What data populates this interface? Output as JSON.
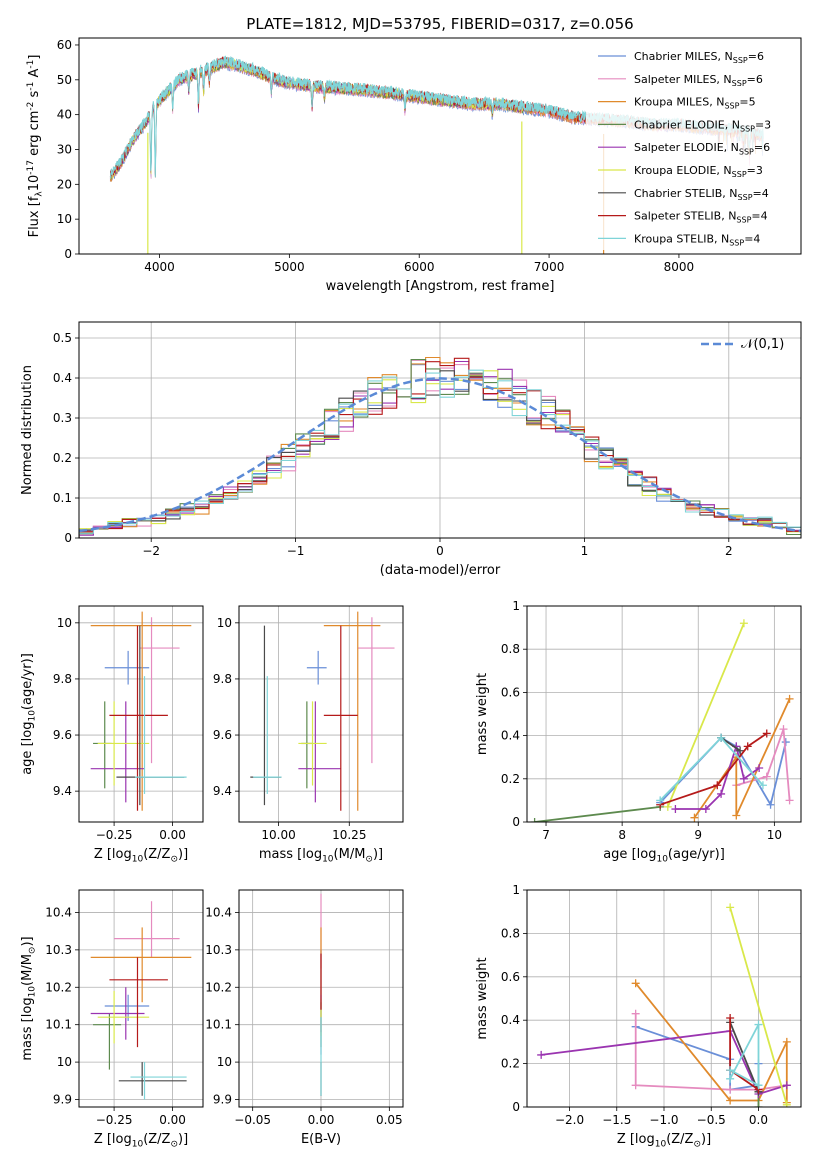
{
  "figure_title": "PLATE=1812, MJD=53795, FIBERID=0317, z=0.056",
  "series_names": [
    "Chabrier MILES, N$_{SSP}$=6",
    "Salpeter MILES, N$_{SSP}$=6",
    "Kroupa MILES, N$_{SSP}$=5",
    "Chabrier ELODIE, N$_{SSP}$=3",
    "Salpeter ELODIE, N$_{SSP}$=6",
    "Kroupa ELODIE, N$_{SSP}$=3",
    "Chabrier STELIB, N$_{SSP}$=4",
    "Salpeter STELIB, N$_{SSP}$=4",
    "Kroupa STELIB, N$_{SSP}$=4"
  ],
  "series_colors": [
    "#6a8fd8",
    "#e58bbf",
    "#e08a2c",
    "#5d8a4e",
    "#9a34b0",
    "#d9e84a",
    "#4a4a4a",
    "#b51a1a",
    "#7fd4d8"
  ],
  "chart_data": [
    {
      "id": "spectrum",
      "type": "line",
      "title": "PLATE=1812, MJD=53795, FIBERID=0317, z=0.056",
      "xlabel": "wavelength [Angstrom, rest frame]",
      "ylabel": "Flux [f$_\\lambda$10$^{-17}$ erg cm$^{-2}$ s$^{-1}$ A$^{-1}$]",
      "xlim": [
        3380,
        8940
      ],
      "ylim": [
        0,
        62
      ],
      "xticks": [
        4000,
        5000,
        6000,
        7000,
        8000
      ],
      "yticks": [
        0,
        10,
        20,
        30,
        40,
        50,
        60
      ],
      "grid": false,
      "legend": "upper right",
      "continuum": [
        [
          3620,
          22
        ],
        [
          3700,
          26
        ],
        [
          3800,
          33
        ],
        [
          3900,
          38
        ],
        [
          3950,
          42
        ],
        [
          4050,
          46
        ],
        [
          4150,
          50
        ],
        [
          4300,
          52
        ],
        [
          4500,
          55
        ],
        [
          4700,
          53
        ],
        [
          4900,
          50
        ],
        [
          5000,
          49
        ],
        [
          5200,
          48
        ],
        [
          5400,
          47.5
        ],
        [
          5600,
          47
        ],
        [
          5800,
          46
        ],
        [
          6000,
          45
        ],
        [
          6200,
          44
        ],
        [
          6400,
          43
        ],
        [
          6600,
          43
        ],
        [
          6800,
          42
        ],
        [
          7000,
          41
        ],
        [
          7200,
          39
        ],
        [
          7400,
          38.5
        ],
        [
          7600,
          38
        ],
        [
          7800,
          37
        ],
        [
          8000,
          37
        ],
        [
          8200,
          36
        ],
        [
          8400,
          35.5
        ],
        [
          8650,
          34
        ]
      ],
      "absorption_lines": [
        [
          3934,
          18
        ],
        [
          3968,
          20
        ],
        [
          4102,
          6
        ],
        [
          4226,
          4
        ],
        [
          4300,
          10
        ],
        [
          4340,
          6
        ],
        [
          4384,
          4
        ],
        [
          4861,
          4
        ],
        [
          5175,
          6
        ],
        [
          5270,
          3
        ],
        [
          5890,
          4
        ],
        [
          6563,
          3
        ],
        [
          8498,
          3
        ],
        [
          8542,
          5
        ],
        [
          8662,
          5
        ]
      ],
      "spikes": [
        [
          3910,
          0
        ],
        [
          6790,
          0
        ],
        [
          7420,
          0
        ]
      ],
      "per_series_range": [
        [
          3620,
          8650
        ],
        [
          3620,
          8650
        ],
        [
          3620,
          8650
        ],
        [
          3620,
          6800
        ],
        [
          3620,
          6800
        ],
        [
          3620,
          6800
        ],
        [
          3620,
          8650
        ],
        [
          3620,
          8650
        ],
        [
          3620,
          8650
        ]
      ]
    },
    {
      "id": "residuals",
      "type": "step",
      "xlabel": "(data-model)/error",
      "ylabel": "Normed distribution",
      "xlim": [
        -2.5,
        2.5
      ],
      "ylim": [
        0,
        0.54
      ],
      "xticks": [
        -2,
        -1,
        0,
        1,
        2
      ],
      "yticks": [
        0,
        0.1,
        0.2,
        0.3,
        0.4,
        0.5
      ],
      "grid": true,
      "legend": "upper right",
      "reference_name": "$\\mathcal{N}(0,1)$",
      "bin_edges_start": -2.5,
      "bin_width": 0.1,
      "base_values": [
        0.015,
        0.02,
        0.03,
        0.04,
        0.045,
        0.05,
        0.06,
        0.07,
        0.08,
        0.09,
        0.11,
        0.13,
        0.15,
        0.18,
        0.2,
        0.23,
        0.26,
        0.28,
        0.31,
        0.33,
        0.35,
        0.37,
        0.38,
        0.39,
        0.4,
        0.4,
        0.39,
        0.39,
        0.38,
        0.37,
        0.35,
        0.33,
        0.31,
        0.28,
        0.26,
        0.23,
        0.2,
        0.18,
        0.15,
        0.13,
        0.11,
        0.09,
        0.08,
        0.07,
        0.06,
        0.05,
        0.045,
        0.04,
        0.03,
        0.02
      ]
    },
    {
      "id": "age-vs-Z",
      "type": "errorbar",
      "xlabel": "Z [log$_{10}$(Z/Z$_\\odot$)]",
      "ylabel": "age  [log$_{10}$(age/yr)]",
      "xlim": [
        -0.4,
        0.13
      ],
      "ylim": [
        9.29,
        10.06
      ],
      "xticks": [
        -0.25,
        0.0
      ],
      "xtick_labels": [
        "−0.25",
        "0.00"
      ],
      "yticks": [
        9.4,
        9.6,
        9.8,
        10.0
      ],
      "grid": true,
      "points": [
        {
          "x": -0.19,
          "y": 9.84,
          "xerr": [
            0.1,
            0.09
          ],
          "yerr": [
            0.06,
            0.06
          ]
        },
        {
          "x": -0.09,
          "y": 9.91,
          "xerr": [
            0.05,
            0.12
          ],
          "yerr": [
            0.41,
            0.11
          ]
        },
        {
          "x": -0.13,
          "y": 9.99,
          "xerr": [
            0.22,
            0.21
          ],
          "yerr": [
            0.66,
            0.05
          ]
        },
        {
          "x": -0.29,
          "y": 9.57,
          "xerr": [
            0.05,
            0.03
          ],
          "yerr": [
            0.16,
            0.15
          ]
        },
        {
          "x": -0.2,
          "y": 9.48,
          "xerr": [
            0.15,
            0.08
          ],
          "yerr": [
            0.12,
            0.24
          ]
        },
        {
          "x": -0.25,
          "y": 9.57,
          "xerr": [
            0.07,
            0.15
          ],
          "yerr": [
            0.15,
            0.15
          ]
        },
        {
          "x": -0.14,
          "y": 9.45,
          "xerr": [
            0.1,
            0.19
          ],
          "yerr": [
            0.1,
            0.54
          ]
        },
        {
          "x": -0.15,
          "y": 9.67,
          "xerr": [
            0.12,
            0.13
          ],
          "yerr": [
            0.34,
            0.32
          ]
        },
        {
          "x": -0.12,
          "y": 9.45,
          "xerr": [
            0.04,
            0.18
          ],
          "yerr": [
            0.06,
            0.36
          ]
        }
      ]
    },
    {
      "id": "age-vs-mass",
      "type": "errorbar",
      "xlabel": "mass [log$_{10}$(M/M$_\\odot$)]",
      "ylabel": "",
      "xlim": [
        9.86,
        10.44
      ],
      "ylim": [
        9.29,
        10.06
      ],
      "xticks": [
        10.0,
        10.25
      ],
      "xtick_labels": [
        "10.00",
        "10.25"
      ],
      "yticks": [
        9.4,
        9.6,
        9.8,
        10.0
      ],
      "grid": true,
      "points": [
        {
          "x": 10.14,
          "y": 9.84,
          "xerr": [
            0.04,
            0.03
          ],
          "yerr": [
            0.06,
            0.06
          ]
        },
        {
          "x": 10.33,
          "y": 9.91,
          "xerr": [
            0.05,
            0.08
          ],
          "yerr": [
            0.41,
            0.11
          ]
        },
        {
          "x": 10.28,
          "y": 9.99,
          "xerr": [
            0.12,
            0.08
          ],
          "yerr": [
            0.66,
            0.05
          ]
        },
        {
          "x": 10.1,
          "y": 9.57,
          "xerr": [
            0.02,
            0.02
          ],
          "yerr": [
            0.16,
            0.15
          ]
        },
        {
          "x": 10.13,
          "y": 9.48,
          "xerr": [
            0.06,
            0.09
          ],
          "yerr": [
            0.12,
            0.24
          ]
        },
        {
          "x": 10.12,
          "y": 9.57,
          "xerr": [
            0.05,
            0.05
          ],
          "yerr": [
            0.15,
            0.15
          ]
        },
        {
          "x": 9.95,
          "y": 9.45,
          "xerr": [
            0.05,
            0.06
          ],
          "yerr": [
            0.1,
            0.54
          ]
        },
        {
          "x": 10.22,
          "y": 9.67,
          "xerr": [
            0.06,
            0.06
          ],
          "yerr": [
            0.34,
            0.32
          ]
        },
        {
          "x": 9.96,
          "y": 9.45,
          "xerr": [
            0.05,
            0.05
          ],
          "yerr": [
            0.06,
            0.36
          ]
        }
      ]
    },
    {
      "id": "weight-vs-age",
      "type": "line",
      "xlabel": "age  [log$_{10}$(age/yr)]",
      "ylabel": "mass weight",
      "xlim": [
        6.75,
        10.35
      ],
      "ylim": [
        0,
        1.0
      ],
      "xticks": [
        7,
        8,
        9,
        10
      ],
      "yticks": [
        0,
        0.2,
        0.4,
        0.6,
        0.8,
        1.0
      ],
      "grid": true,
      "series": [
        [
          [
            8.5,
            0.09
          ],
          [
            9.3,
            0.39
          ],
          [
            9.5,
            0.35
          ],
          [
            9.95,
            0.08
          ],
          [
            10.15,
            0.37
          ]
        ],
        [
          [
            9.5,
            0.17
          ],
          [
            9.9,
            0.21
          ],
          [
            10.12,
            0.43
          ],
          [
            10.2,
            0.1
          ]
        ],
        [
          [
            8.95,
            0.02
          ],
          [
            9.5,
            0.3
          ],
          [
            9.5,
            0.03
          ],
          [
            10.2,
            0.57
          ]
        ],
        [
          [
            6.85,
            0.0
          ],
          [
            8.5,
            0.07
          ]
        ],
        [
          [
            8.7,
            0.06
          ],
          [
            9.1,
            0.06
          ],
          [
            9.3,
            0.13
          ],
          [
            9.5,
            0.35
          ],
          [
            9.6,
            0.2
          ],
          [
            9.8,
            0.25
          ]
        ],
        [
          [
            8.6,
            0.07
          ],
          [
            9.6,
            0.92
          ]
        ],
        [
          [
            9.3,
            0.39
          ],
          [
            9.55,
            0.33
          ]
        ],
        [
          [
            8.5,
            0.08
          ],
          [
            9.25,
            0.17
          ],
          [
            9.65,
            0.35
          ],
          [
            9.9,
            0.41
          ]
        ],
        [
          [
            8.5,
            0.1
          ],
          [
            9.3,
            0.39
          ],
          [
            9.85,
            0.17
          ]
        ]
      ]
    },
    {
      "id": "mass-vs-Z",
      "type": "errorbar",
      "xlabel": "Z [log$_{10}$(Z/Z$_\\odot$)]",
      "ylabel": "mass [log$_{10}$(M/M$_\\odot$)]",
      "xlim": [
        -0.4,
        0.13
      ],
      "ylim": [
        9.88,
        10.46
      ],
      "xticks": [
        -0.25,
        0.0
      ],
      "xtick_labels": [
        "−0.25",
        "0.00"
      ],
      "yticks": [
        9.9,
        10.0,
        10.1,
        10.2,
        10.3,
        10.4
      ],
      "grid": true,
      "points": [
        {
          "x": -0.19,
          "y": 10.15,
          "xerr": [
            0.1,
            0.09
          ],
          "yerr": [
            0.04,
            0.03
          ]
        },
        {
          "x": -0.09,
          "y": 10.33,
          "xerr": [
            0.16,
            0.12
          ],
          "yerr": [
            0.05,
            0.1
          ]
        },
        {
          "x": -0.13,
          "y": 10.28,
          "xerr": [
            0.22,
            0.21
          ],
          "yerr": [
            0.12,
            0.08
          ]
        },
        {
          "x": -0.27,
          "y": 10.1,
          "xerr": [
            0.07,
            0.05
          ],
          "yerr": [
            0.12,
            0.03
          ]
        },
        {
          "x": -0.2,
          "y": 10.13,
          "xerr": [
            0.15,
            0.08
          ],
          "yerr": [
            0.07,
            0.07
          ]
        },
        {
          "x": -0.25,
          "y": 10.12,
          "xerr": [
            0.07,
            0.15
          ],
          "yerr": [
            0.07,
            0.07
          ]
        },
        {
          "x": -0.13,
          "y": 9.95,
          "xerr": [
            0.1,
            0.19
          ],
          "yerr": [
            0.04,
            0.05
          ]
        },
        {
          "x": -0.15,
          "y": 10.22,
          "xerr": [
            0.12,
            0.13
          ],
          "yerr": [
            0.18,
            0.06
          ]
        },
        {
          "x": -0.12,
          "y": 9.96,
          "xerr": [
            0.06,
            0.18
          ],
          "yerr": [
            0.06,
            0.04
          ]
        }
      ]
    },
    {
      "id": "mass-vs-ebv",
      "type": "errorbar",
      "xlabel": "E(B-V)",
      "ylabel": "",
      "xlim": [
        -0.06,
        0.06
      ],
      "ylim": [
        9.88,
        10.46
      ],
      "xticks": [
        -0.05,
        0.0,
        0.05
      ],
      "xtick_labels": [
        "−0.05",
        "0.00",
        "0.05"
      ],
      "yticks": [
        9.9,
        10.0,
        10.1,
        10.2,
        10.3,
        10.4
      ],
      "grid": true,
      "points": [
        {
          "x": 0.0,
          "y": 10.15,
          "xerr": [
            0,
            0
          ],
          "yerr": [
            0.13,
            0.15
          ]
        },
        {
          "x": 0.0,
          "y": 10.33,
          "xerr": [
            0,
            0
          ],
          "yerr": [
            0.08,
            0.12
          ]
        },
        {
          "x": 0.0,
          "y": 10.28,
          "xerr": [
            0,
            0
          ],
          "yerr": [
            0.1,
            0.08
          ]
        },
        {
          "x": 0.0,
          "y": 10.1,
          "xerr": [
            0,
            0
          ],
          "yerr": [
            0.06,
            0.06
          ]
        },
        {
          "x": 0.0,
          "y": 10.13,
          "xerr": [
            0,
            0
          ],
          "yerr": [
            0.05,
            0.05
          ]
        },
        {
          "x": 0.0,
          "y": 10.12,
          "xerr": [
            0,
            0
          ],
          "yerr": [
            0.05,
            0.05
          ]
        },
        {
          "x": 0.0,
          "y": 9.95,
          "xerr": [
            0,
            0
          ],
          "yerr": [
            0.04,
            0.05
          ]
        },
        {
          "x": 0.0,
          "y": 10.22,
          "xerr": [
            0,
            0
          ],
          "yerr": [
            0.08,
            0.07
          ]
        },
        {
          "x": 0.0,
          "y": 9.96,
          "xerr": [
            0,
            0
          ],
          "yerr": [
            0.05,
            0.16
          ]
        }
      ]
    },
    {
      "id": "weight-vs-Z",
      "type": "line",
      "xlabel": "Z [log$_{10}$(Z/Z$_\\odot$)]",
      "ylabel": "mass weight",
      "xlim": [
        -2.45,
        0.45
      ],
      "ylim": [
        0,
        1.0
      ],
      "xticks": [
        -2.0,
        -1.5,
        -1.0,
        -0.5,
        0.0
      ],
      "xtick_labels": [
        "−2.0",
        "−1.5",
        "−1.0",
        "−0.5",
        "0.0"
      ],
      "yticks": [
        0,
        0.2,
        0.4,
        0.6,
        0.8,
        1.0
      ],
      "grid": true,
      "series": [
        [
          [
            -1.3,
            0.37
          ],
          [
            -0.3,
            0.22
          ],
          [
            -0.3,
            0.08
          ],
          [
            0.0,
            0.1
          ],
          [
            0.0,
            0.2
          ]
        ],
        [
          [
            -1.3,
            0.43
          ],
          [
            -1.3,
            0.1
          ],
          [
            -0.3,
            0.08
          ],
          [
            0.0,
            0.08
          ],
          [
            0.3,
            0.1
          ]
        ],
        [
          [
            -1.3,
            0.57
          ],
          [
            -0.3,
            0.03
          ],
          [
            0.0,
            0.03
          ],
          [
            0.3,
            0.3
          ],
          [
            0.3,
            0.02
          ]
        ],
        [
          [
            0.0,
            0.07
          ],
          [
            0.0,
            0.0
          ]
        ],
        [
          [
            -2.3,
            0.24
          ],
          [
            -0.3,
            0.35
          ],
          [
            0.0,
            0.06
          ],
          [
            0.3,
            0.1
          ]
        ],
        [
          [
            -0.3,
            0.92
          ],
          [
            0.3,
            0.01
          ]
        ],
        [
          [
            -0.3,
            0.39
          ],
          [
            0.0,
            0.07
          ]
        ],
        [
          [
            -0.3,
            0.41
          ],
          [
            -0.3,
            0.17
          ],
          [
            0.0,
            0.08
          ]
        ],
        [
          [
            -0.3,
            0.13
          ],
          [
            0.0,
            0.38
          ],
          [
            0.0,
            0.1
          ],
          [
            -0.3,
            0.17
          ]
        ]
      ]
    }
  ]
}
